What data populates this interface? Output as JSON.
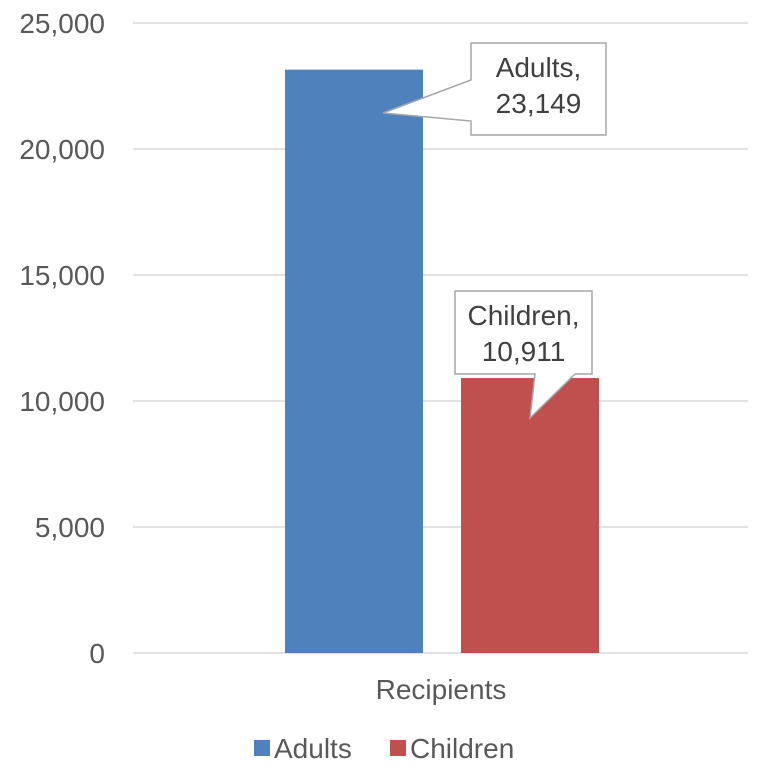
{
  "chart_data": {
    "type": "bar",
    "categories": [
      "Recipients"
    ],
    "series": [
      {
        "name": "Adults",
        "values": [
          23149
        ],
        "color": "#4F81BD",
        "data_label": [
          "Adults,",
          "23,149"
        ]
      },
      {
        "name": "Children",
        "values": [
          10911
        ],
        "color": "#C0504D",
        "data_label": [
          "Children,",
          "10,911"
        ]
      }
    ],
    "ylim": [
      0,
      25000
    ],
    "yticks": [
      0,
      5000,
      10000,
      15000,
      20000,
      25000
    ],
    "ytick_labels": [
      "0",
      "5,000",
      "10,000",
      "15,000",
      "20,000",
      "25,000"
    ],
    "grid": true,
    "legend": "bottom",
    "title": "",
    "xlabel": "",
    "ylabel": ""
  }
}
